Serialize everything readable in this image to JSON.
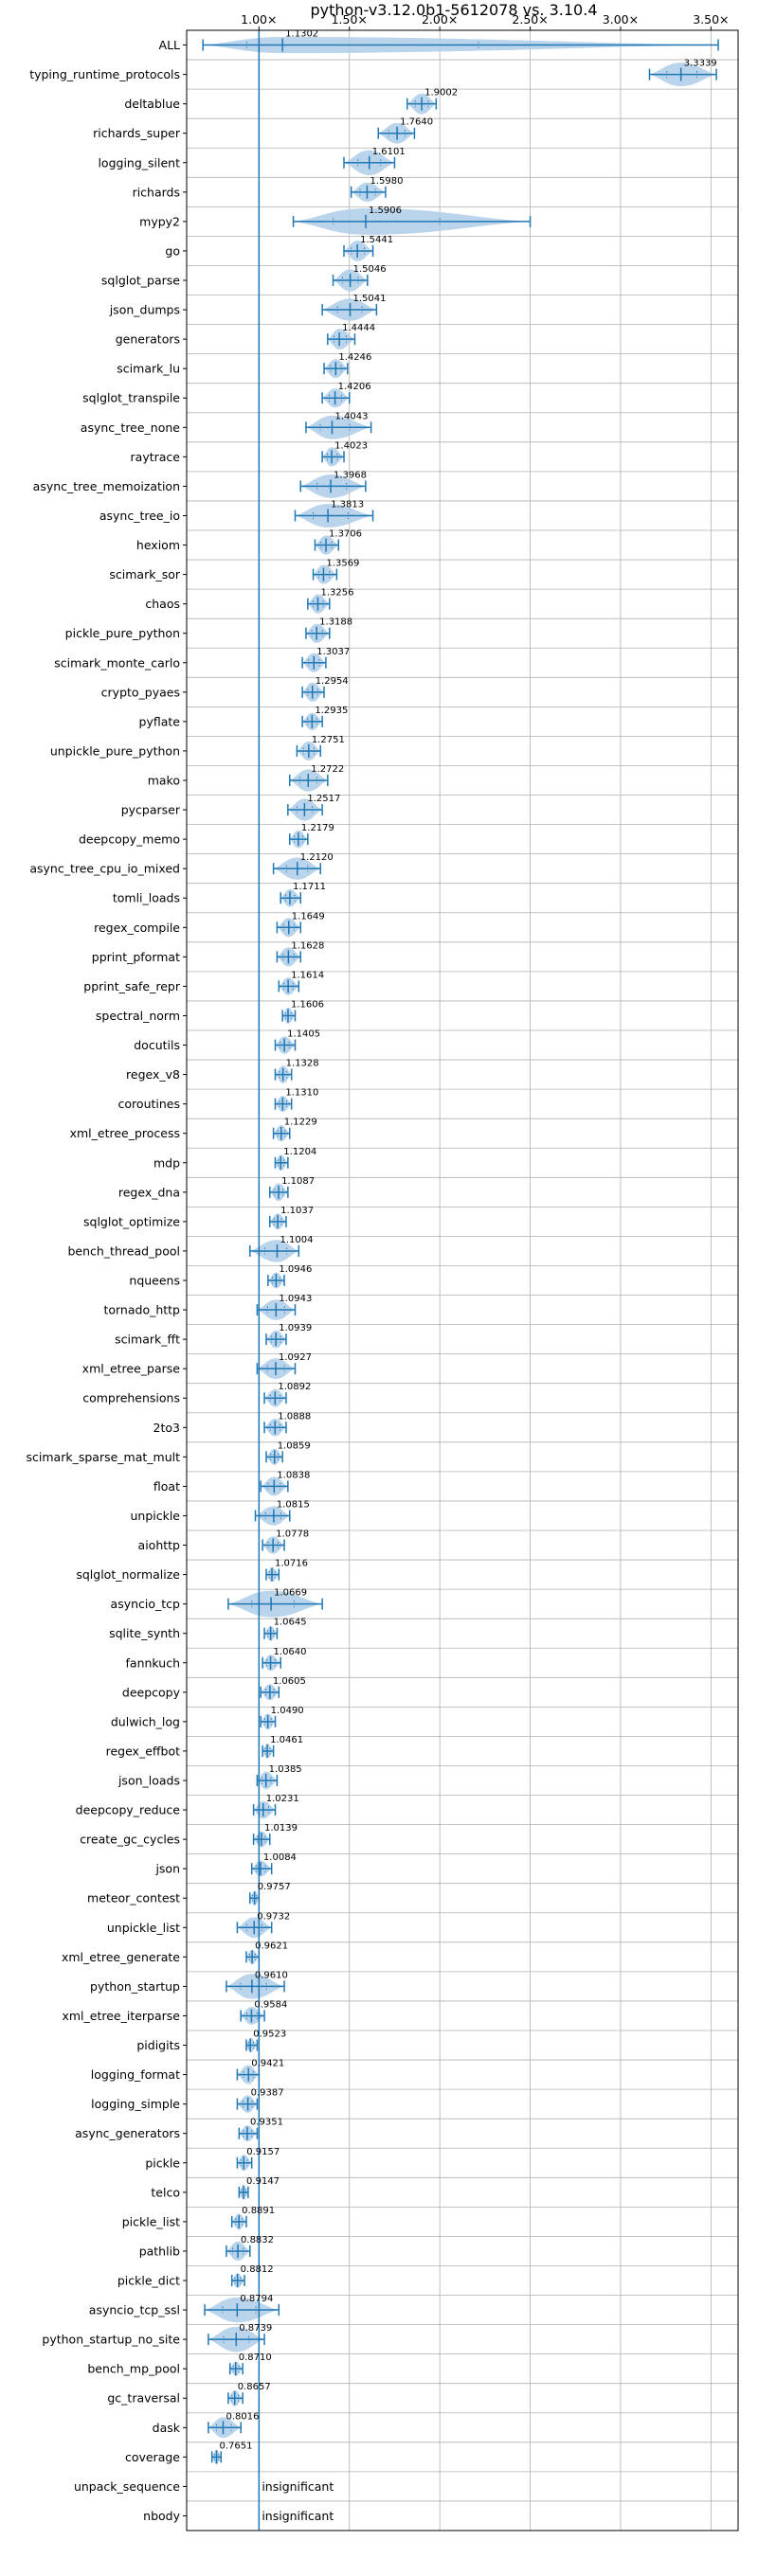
{
  "chart_data": {
    "type": "violin",
    "title": "python-v3.12.0b1-5612078 vs. 3.10.4",
    "xlabel": "",
    "ylabel": "",
    "xlim": [
      0.6,
      3.65
    ],
    "x_ticks": [
      1.0,
      1.5,
      2.0,
      2.5,
      3.0,
      3.5
    ],
    "x_tick_labels": [
      "1.00×",
      "1.50×",
      "2.00×",
      "2.50×",
      "3.00×",
      "3.50×"
    ],
    "reference_line": 1.0,
    "grid": true,
    "colors": {
      "violin": "#aecde8",
      "line": "#1f77b4",
      "grid": "#b0b0b0"
    },
    "benchmarks": [
      {
        "name": "ALL",
        "value": 1.1302,
        "label": "1.1302",
        "min": 0.69,
        "max": 3.54,
        "width": 0.55
      },
      {
        "name": "typing_runtime_protocols",
        "value": 3.3339,
        "label": "3.3339",
        "min": 3.16,
        "max": 3.53,
        "width": 0.8
      },
      {
        "name": "deltablue",
        "value": 1.9002,
        "label": "1.9002",
        "min": 1.82,
        "max": 1.98,
        "width": 0.7
      },
      {
        "name": "richards_super",
        "value": 1.764,
        "label": "1.7640",
        "min": 1.66,
        "max": 1.86,
        "width": 0.7
      },
      {
        "name": "logging_silent",
        "value": 1.6101,
        "label": "1.6101",
        "min": 1.47,
        "max": 1.75,
        "width": 0.85
      },
      {
        "name": "richards",
        "value": 1.598,
        "label": "1.5980",
        "min": 1.51,
        "max": 1.7,
        "width": 0.65
      },
      {
        "name": "mypy2",
        "value": 1.5906,
        "label": "1.5906",
        "min": 1.19,
        "max": 2.5,
        "width": 0.9
      },
      {
        "name": "go",
        "value": 1.5441,
        "label": "1.5441",
        "min": 1.47,
        "max": 1.63,
        "width": 0.7
      },
      {
        "name": "sqlglot_parse",
        "value": 1.5046,
        "label": "1.5046",
        "min": 1.41,
        "max": 1.6,
        "width": 0.75
      },
      {
        "name": "json_dumps",
        "value": 1.5041,
        "label": "1.5041",
        "min": 1.35,
        "max": 1.65,
        "width": 0.75
      },
      {
        "name": "generators",
        "value": 1.4444,
        "label": "1.4444",
        "min": 1.38,
        "max": 1.53,
        "width": 0.7
      },
      {
        "name": "scimark_lu",
        "value": 1.4246,
        "label": "1.4246",
        "min": 1.36,
        "max": 1.49,
        "width": 0.65
      },
      {
        "name": "sqlglot_transpile",
        "value": 1.4206,
        "label": "1.4206",
        "min": 1.35,
        "max": 1.5,
        "width": 0.65
      },
      {
        "name": "async_tree_none",
        "value": 1.4043,
        "label": "1.4043",
        "min": 1.26,
        "max": 1.62,
        "width": 0.8
      },
      {
        "name": "raytrace",
        "value": 1.4023,
        "label": "1.4023",
        "min": 1.35,
        "max": 1.47,
        "width": 0.65
      },
      {
        "name": "async_tree_memoization",
        "value": 1.3968,
        "label": "1.3968",
        "min": 1.23,
        "max": 1.59,
        "width": 0.8
      },
      {
        "name": "async_tree_io",
        "value": 1.3813,
        "label": "1.3813",
        "min": 1.2,
        "max": 1.63,
        "width": 0.8
      },
      {
        "name": "hexiom",
        "value": 1.3706,
        "label": "1.3706",
        "min": 1.31,
        "max": 1.44,
        "width": 0.65
      },
      {
        "name": "scimark_sor",
        "value": 1.3569,
        "label": "1.3569",
        "min": 1.3,
        "max": 1.43,
        "width": 0.65
      },
      {
        "name": "chaos",
        "value": 1.3256,
        "label": "1.3256",
        "min": 1.27,
        "max": 1.39,
        "width": 0.65
      },
      {
        "name": "pickle_pure_python",
        "value": 1.3188,
        "label": "1.3188",
        "min": 1.26,
        "max": 1.39,
        "width": 0.65
      },
      {
        "name": "scimark_monte_carlo",
        "value": 1.3037,
        "label": "1.3037",
        "min": 1.24,
        "max": 1.37,
        "width": 0.65
      },
      {
        "name": "crypto_pyaes",
        "value": 1.2954,
        "label": "1.2954",
        "min": 1.24,
        "max": 1.36,
        "width": 0.65
      },
      {
        "name": "pyflate",
        "value": 1.2935,
        "label": "1.2935",
        "min": 1.24,
        "max": 1.35,
        "width": 0.6
      },
      {
        "name": "unpickle_pure_python",
        "value": 1.2751,
        "label": "1.2751",
        "min": 1.21,
        "max": 1.34,
        "width": 0.65
      },
      {
        "name": "mako",
        "value": 1.2722,
        "label": "1.2722",
        "min": 1.17,
        "max": 1.38,
        "width": 0.75
      },
      {
        "name": "pycparser",
        "value": 1.2517,
        "label": "1.2517",
        "min": 1.16,
        "max": 1.35,
        "width": 0.75
      },
      {
        "name": "deepcopy_memo",
        "value": 1.2179,
        "label": "1.2179",
        "min": 1.17,
        "max": 1.27,
        "width": 0.6
      },
      {
        "name": "async_tree_cpu_io_mixed",
        "value": 1.212,
        "label": "1.2120",
        "min": 1.08,
        "max": 1.34,
        "width": 0.75
      },
      {
        "name": "tomli_loads",
        "value": 1.1711,
        "label": "1.1711",
        "min": 1.12,
        "max": 1.23,
        "width": 0.6
      },
      {
        "name": "regex_compile",
        "value": 1.1649,
        "label": "1.1649",
        "min": 1.1,
        "max": 1.23,
        "width": 0.65
      },
      {
        "name": "pprint_pformat",
        "value": 1.1628,
        "label": "1.1628",
        "min": 1.1,
        "max": 1.23,
        "width": 0.65
      },
      {
        "name": "pprint_safe_repr",
        "value": 1.1614,
        "label": "1.1614",
        "min": 1.11,
        "max": 1.22,
        "width": 0.6
      },
      {
        "name": "spectral_norm",
        "value": 1.1606,
        "label": "1.1606",
        "min": 1.13,
        "max": 1.2,
        "width": 0.55
      },
      {
        "name": "docutils",
        "value": 1.1405,
        "label": "1.1405",
        "min": 1.09,
        "max": 1.2,
        "width": 0.6
      },
      {
        "name": "regex_v8",
        "value": 1.1328,
        "label": "1.1328",
        "min": 1.09,
        "max": 1.18,
        "width": 0.6
      },
      {
        "name": "coroutines",
        "value": 1.131,
        "label": "1.1310",
        "min": 1.09,
        "max": 1.18,
        "width": 0.55
      },
      {
        "name": "xml_etree_process",
        "value": 1.1229,
        "label": "1.1229",
        "min": 1.08,
        "max": 1.17,
        "width": 0.55
      },
      {
        "name": "mdp",
        "value": 1.1204,
        "label": "1.1204",
        "min": 1.09,
        "max": 1.16,
        "width": 0.55
      },
      {
        "name": "regex_dna",
        "value": 1.1087,
        "label": "1.1087",
        "min": 1.06,
        "max": 1.16,
        "width": 0.6
      },
      {
        "name": "sqlglot_optimize",
        "value": 1.1037,
        "label": "1.1037",
        "min": 1.06,
        "max": 1.15,
        "width": 0.55
      },
      {
        "name": "bench_thread_pool",
        "value": 1.1004,
        "label": "1.1004",
        "min": 0.95,
        "max": 1.22,
        "width": 0.75
      },
      {
        "name": "nqueens",
        "value": 1.0946,
        "label": "1.0946",
        "min": 1.05,
        "max": 1.14,
        "width": 0.55
      },
      {
        "name": "tornado_http",
        "value": 1.0943,
        "label": "1.0943",
        "min": 0.99,
        "max": 1.2,
        "width": 0.7
      },
      {
        "name": "scimark_fft",
        "value": 1.0939,
        "label": "1.0939",
        "min": 1.04,
        "max": 1.15,
        "width": 0.6
      },
      {
        "name": "xml_etree_parse",
        "value": 1.0927,
        "label": "1.0927",
        "min": 0.99,
        "max": 1.2,
        "width": 0.7
      },
      {
        "name": "comprehensions",
        "value": 1.0892,
        "label": "1.0892",
        "min": 1.03,
        "max": 1.15,
        "width": 0.6
      },
      {
        "name": "2to3",
        "value": 1.0888,
        "label": "1.0888",
        "min": 1.03,
        "max": 1.15,
        "width": 0.6
      },
      {
        "name": "scimark_sparse_mat_mult",
        "value": 1.0859,
        "label": "1.0859",
        "min": 1.04,
        "max": 1.13,
        "width": 0.55
      },
      {
        "name": "float",
        "value": 1.0838,
        "label": "1.0838",
        "min": 1.01,
        "max": 1.16,
        "width": 0.65
      },
      {
        "name": "unpickle",
        "value": 1.0815,
        "label": "1.0815",
        "min": 0.98,
        "max": 1.17,
        "width": 0.65
      },
      {
        "name": "aiohttp",
        "value": 1.0778,
        "label": "1.0778",
        "min": 1.02,
        "max": 1.14,
        "width": 0.6
      },
      {
        "name": "sqlglot_normalize",
        "value": 1.0716,
        "label": "1.0716",
        "min": 1.04,
        "max": 1.11,
        "width": 0.5
      },
      {
        "name": "asyncio_tcp",
        "value": 1.0669,
        "label": "1.0669",
        "min": 0.83,
        "max": 1.35,
        "width": 0.9
      },
      {
        "name": "sqlite_synth",
        "value": 1.0645,
        "label": "1.0645",
        "min": 1.03,
        "max": 1.1,
        "width": 0.5
      },
      {
        "name": "fannkuch",
        "value": 1.064,
        "label": "1.0640",
        "min": 1.02,
        "max": 1.12,
        "width": 0.55
      },
      {
        "name": "deepcopy",
        "value": 1.0605,
        "label": "1.0605",
        "min": 1.01,
        "max": 1.11,
        "width": 0.55
      },
      {
        "name": "dulwich_log",
        "value": 1.049,
        "label": "1.0490",
        "min": 1.01,
        "max": 1.09,
        "width": 0.55
      },
      {
        "name": "regex_effbot",
        "value": 1.0461,
        "label": "1.0461",
        "min": 1.02,
        "max": 1.08,
        "width": 0.5
      },
      {
        "name": "json_loads",
        "value": 1.0385,
        "label": "1.0385",
        "min": 0.99,
        "max": 1.1,
        "width": 0.6
      },
      {
        "name": "deepcopy_reduce",
        "value": 1.0231,
        "label": "1.0231",
        "min": 0.97,
        "max": 1.09,
        "width": 0.6
      },
      {
        "name": "create_gc_cycles",
        "value": 1.0139,
        "label": "1.0139",
        "min": 0.97,
        "max": 1.06,
        "width": 0.55
      },
      {
        "name": "json",
        "value": 1.0084,
        "label": "1.0084",
        "min": 0.96,
        "max": 1.07,
        "width": 0.55
      },
      {
        "name": "meteor_contest",
        "value": 0.9757,
        "label": "0.9757",
        "min": 0.95,
        "max": 1.0,
        "width": 0.5
      },
      {
        "name": "unpickle_list",
        "value": 0.9732,
        "label": "0.9732",
        "min": 0.88,
        "max": 1.07,
        "width": 0.7
      },
      {
        "name": "xml_etree_generate",
        "value": 0.9621,
        "label": "0.9621",
        "min": 0.93,
        "max": 1.0,
        "width": 0.5
      },
      {
        "name": "python_startup",
        "value": 0.961,
        "label": "0.9610",
        "min": 0.82,
        "max": 1.14,
        "width": 0.85
      },
      {
        "name": "xml_etree_iterparse",
        "value": 0.9584,
        "label": "0.9584",
        "min": 0.9,
        "max": 1.03,
        "width": 0.6
      },
      {
        "name": "pidigits",
        "value": 0.9523,
        "label": "0.9523",
        "min": 0.93,
        "max": 0.99,
        "width": 0.5
      },
      {
        "name": "logging_format",
        "value": 0.9421,
        "label": "0.9421",
        "min": 0.88,
        "max": 1.0,
        "width": 0.65
      },
      {
        "name": "logging_simple",
        "value": 0.9387,
        "label": "0.9387",
        "min": 0.88,
        "max": 0.99,
        "width": 0.6
      },
      {
        "name": "async_generators",
        "value": 0.9351,
        "label": "0.9351",
        "min": 0.89,
        "max": 0.99,
        "width": 0.55
      },
      {
        "name": "pickle",
        "value": 0.9157,
        "label": "0.9157",
        "min": 0.88,
        "max": 0.96,
        "width": 0.55
      },
      {
        "name": "telco",
        "value": 0.9147,
        "label": "0.9147",
        "min": 0.89,
        "max": 0.94,
        "width": 0.5
      },
      {
        "name": "pickle_list",
        "value": 0.8891,
        "label": "0.8891",
        "min": 0.85,
        "max": 0.93,
        "width": 0.55
      },
      {
        "name": "pathlib",
        "value": 0.8832,
        "label": "0.8832",
        "min": 0.82,
        "max": 0.95,
        "width": 0.65
      },
      {
        "name": "pickle_dict",
        "value": 0.8812,
        "label": "0.8812",
        "min": 0.85,
        "max": 0.92,
        "width": 0.5
      },
      {
        "name": "asyncio_tcp_ssl",
        "value": 0.8794,
        "label": "0.8794",
        "min": 0.7,
        "max": 1.11,
        "width": 0.85
      },
      {
        "name": "python_startup_no_site",
        "value": 0.8739,
        "label": "0.8739",
        "min": 0.72,
        "max": 1.03,
        "width": 0.85
      },
      {
        "name": "bench_mp_pool",
        "value": 0.871,
        "label": "0.8710",
        "min": 0.84,
        "max": 0.91,
        "width": 0.5
      },
      {
        "name": "gc_traversal",
        "value": 0.8657,
        "label": "0.8657",
        "min": 0.83,
        "max": 0.91,
        "width": 0.55
      },
      {
        "name": "dask",
        "value": 0.8016,
        "label": "0.8016",
        "min": 0.72,
        "max": 0.9,
        "width": 0.7
      },
      {
        "name": "coverage",
        "value": 0.7651,
        "label": "0.7651",
        "min": 0.74,
        "max": 0.79,
        "width": 0.5
      },
      {
        "name": "unpack_sequence",
        "value": null,
        "label": "insignificant"
      },
      {
        "name": "nbody",
        "value": null,
        "label": "insignificant"
      }
    ]
  }
}
